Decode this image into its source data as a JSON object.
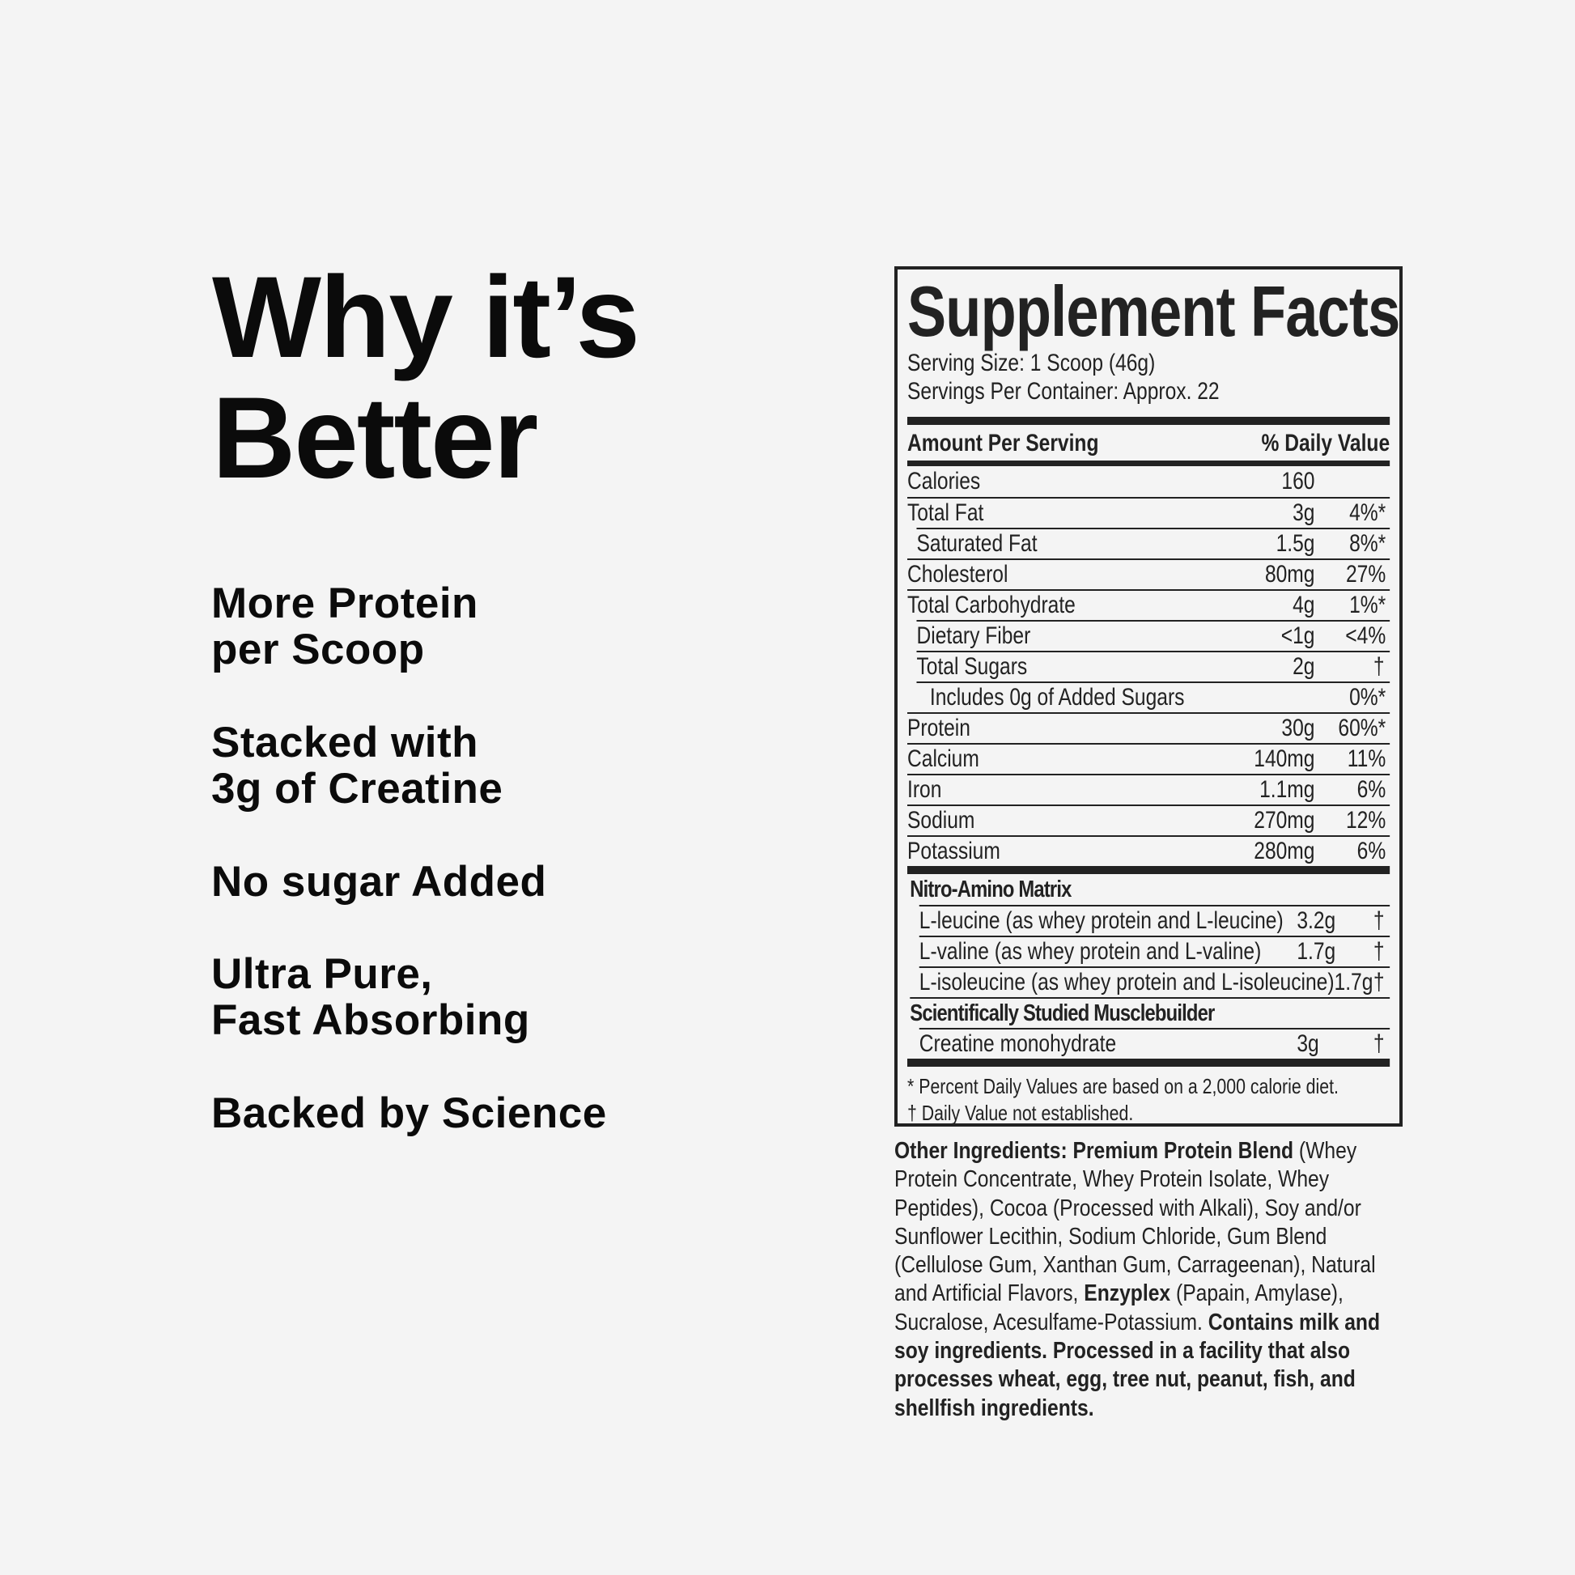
{
  "headline": {
    "line1": "Why it’s",
    "line2": "Better"
  },
  "features": [
    {
      "line1": "More Protein",
      "line2": "per Scoop"
    },
    {
      "line1": "Stacked with",
      "line2": "3g of Creatine"
    },
    {
      "line1": "No sugar Added",
      "line2": ""
    },
    {
      "line1": "Ultra Pure,",
      "line2": "Fast Absorbing"
    },
    {
      "line1": "Backed by Science",
      "line2": ""
    }
  ],
  "facts": {
    "title": "Supplement Facts",
    "serving_size": "Serving Size: 1 Scoop (46g)",
    "servings_per_container": "Servings Per Container: Approx. 22",
    "header_amount": "Amount Per Serving",
    "header_dv": "% Daily Value",
    "rows": [
      {
        "name": "Calories",
        "amount": "160",
        "dv": "",
        "indent": 0
      },
      {
        "name": "Total Fat",
        "amount": "3g",
        "dv": "4%*",
        "indent": 0
      },
      {
        "name": "Saturated Fat",
        "amount": "1.5g",
        "dv": "8%*",
        "indent": 1
      },
      {
        "name": "Cholesterol",
        "amount": "80mg",
        "dv": "27%",
        "indent": 0
      },
      {
        "name": "Total Carbohydrate",
        "amount": "4g",
        "dv": "1%*",
        "indent": 0
      },
      {
        "name": "Dietary Fiber",
        "amount": "<1g",
        "dv": "<4%",
        "indent": 1
      },
      {
        "name": "Total Sugars",
        "amount": "2g",
        "dv": "†",
        "indent": 1
      },
      {
        "name": "Includes 0g of Added Sugars",
        "amount": "",
        "dv": "0%*",
        "indent": 2
      },
      {
        "name": "Protein",
        "amount": "30g",
        "dv": "60%*",
        "indent": 0
      },
      {
        "name": "Calcium",
        "amount": "140mg",
        "dv": "11%",
        "indent": 0
      },
      {
        "name": "Iron",
        "amount": "1.1mg",
        "dv": "6%",
        "indent": 0
      },
      {
        "name": "Sodium",
        "amount": "270mg",
        "dv": "12%",
        "indent": 0
      },
      {
        "name": "Potassium",
        "amount": "280mg",
        "dv": "6%",
        "indent": 0
      }
    ],
    "section1": {
      "title": "Nitro-Amino Matrix",
      "rows": [
        {
          "name": "L-leucine (as whey protein and L-leucine)",
          "amount": "3.2g",
          "dv": "†"
        },
        {
          "name": "L-valine (as whey protein and L-valine)",
          "amount": "1.7g",
          "dv": "†"
        },
        {
          "name": "L-isoleucine (as whey protein and L-isoleucine)",
          "amount": "1.7g",
          "dv": "†"
        }
      ]
    },
    "section2": {
      "title": "Scientifically Studied Musclebuilder",
      "rows": [
        {
          "name": "Creatine monohydrate",
          "amount": "3g",
          "dv": "†"
        }
      ]
    },
    "footnote1": "* Percent Daily Values are based on a 2,000 calorie diet.",
    "footnote2": "† Daily Value not established."
  },
  "ingredients": [
    {
      "text": "Other Ingredients: Premium Protein Blend ",
      "bold": true
    },
    {
      "text": "(Whey Protein Concentrate, Whey Protein Isolate, Whey Peptides), Cocoa (Processed with Alkali), Soy and/or Sunflower Lecithin, Sodium Chloride, Gum Blend (Cellulose Gum, Xanthan Gum, Carrageenan), Natural and Artificial Flavors, ",
      "bold": false
    },
    {
      "text": "Enzyplex ",
      "bold": true
    },
    {
      "text": "(Papain, Amylase), Sucralose, Acesulfame-Potassium. ",
      "bold": false
    },
    {
      "text": "Contains milk and soy ingredients. Processed in a facility that also processes wheat, egg, tree nut, peanut, fish, and shellfish ingredients.",
      "bold": true
    }
  ]
}
